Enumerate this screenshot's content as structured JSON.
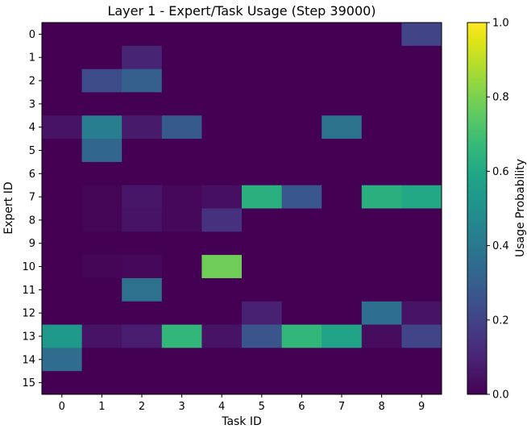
{
  "chart_data": {
    "type": "heatmap",
    "title": "Layer 1 - Expert/Task Usage (Step 39000)",
    "xlabel": "Task ID",
    "ylabel": "Expert ID",
    "x_categories": [
      "0",
      "1",
      "2",
      "3",
      "4",
      "5",
      "6",
      "7",
      "8",
      "9"
    ],
    "y_categories": [
      "0",
      "1",
      "2",
      "3",
      "4",
      "5",
      "6",
      "7",
      "8",
      "9",
      "10",
      "11",
      "12",
      "13",
      "14",
      "15"
    ],
    "values": [
      [
        0.0,
        0.0,
        0.0,
        0.0,
        0.0,
        0.0,
        0.0,
        0.0,
        0.0,
        0.2
      ],
      [
        0.0,
        0.0,
        0.1,
        0.0,
        0.0,
        0.0,
        0.0,
        0.0,
        0.0,
        0.0
      ],
      [
        0.0,
        0.23,
        0.3,
        0.0,
        0.0,
        0.0,
        0.0,
        0.0,
        0.0,
        0.0
      ],
      [
        0.0,
        0.0,
        0.0,
        0.0,
        0.0,
        0.0,
        0.0,
        0.0,
        0.0,
        0.0
      ],
      [
        0.05,
        0.42,
        0.07,
        0.28,
        0.0,
        0.0,
        0.0,
        0.38,
        0.0,
        0.0
      ],
      [
        0.0,
        0.33,
        0.0,
        0.0,
        0.0,
        0.0,
        0.0,
        0.0,
        0.0,
        0.0
      ],
      [
        0.0,
        0.0,
        0.0,
        0.0,
        0.0,
        0.0,
        0.0,
        0.0,
        0.0,
        0.0
      ],
      [
        0.0,
        0.01,
        0.06,
        0.02,
        0.04,
        0.63,
        0.27,
        0.0,
        0.63,
        0.6
      ],
      [
        0.0,
        0.01,
        0.05,
        0.02,
        0.14,
        0.0,
        0.0,
        0.0,
        0.0,
        0.0
      ],
      [
        0.0,
        0.0,
        0.0,
        0.0,
        0.0,
        0.0,
        0.0,
        0.0,
        0.0,
        0.0
      ],
      [
        0.0,
        0.01,
        0.02,
        0.0,
        0.78,
        0.0,
        0.0,
        0.0,
        0.0,
        0.0
      ],
      [
        0.0,
        0.0,
        0.37,
        0.0,
        0.0,
        0.0,
        0.0,
        0.0,
        0.0,
        0.0
      ],
      [
        0.0,
        0.0,
        0.0,
        0.0,
        0.0,
        0.09,
        0.0,
        0.0,
        0.36,
        0.05
      ],
      [
        0.54,
        0.05,
        0.08,
        0.66,
        0.05,
        0.26,
        0.66,
        0.58,
        0.03,
        0.2
      ],
      [
        0.35,
        0.0,
        0.0,
        0.0,
        0.0,
        0.0,
        0.0,
        0.0,
        0.0,
        0.0
      ],
      [
        0.0,
        0.0,
        0.0,
        0.0,
        0.0,
        0.0,
        0.0,
        0.0,
        0.0,
        0.0
      ]
    ],
    "colormap": "viridis",
    "colorbar": {
      "label": "Usage Probability",
      "range": [
        0.0,
        1.0
      ],
      "ticks": [
        "0.0",
        "0.2",
        "0.4",
        "0.6",
        "0.8",
        "1.0"
      ]
    }
  }
}
